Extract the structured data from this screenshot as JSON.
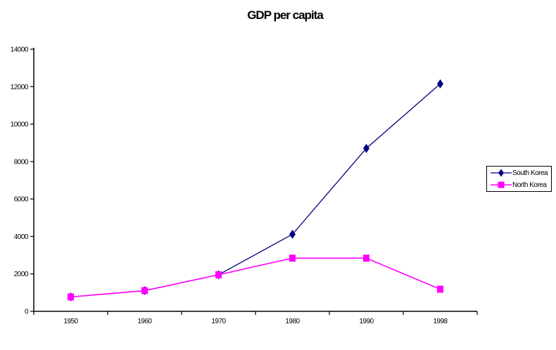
{
  "chart_data": {
    "type": "line",
    "title": "GDP per capita",
    "categories": [
      "1950",
      "1960",
      "1970",
      "1980",
      "1990",
      "1998"
    ],
    "series": [
      {
        "name": "South Korea",
        "color": "#000080",
        "marker": "diamond",
        "values": [
          770,
          1105,
          1954,
          4114,
          8704,
          12152
        ]
      },
      {
        "name": "North Korea",
        "color": "#FF00FF",
        "marker": "square",
        "values": [
          770,
          1105,
          1954,
          2841,
          2841,
          1183
        ]
      }
    ],
    "xlabel": "",
    "ylabel": "",
    "ylim": [
      0,
      14000
    ],
    "yticks": [
      0,
      2000,
      4000,
      6000,
      8000,
      10000,
      12000,
      14000
    ],
    "grid": false,
    "legend_position": "right",
    "axis_color": "#000000",
    "background_color": "#FFFFFF"
  }
}
